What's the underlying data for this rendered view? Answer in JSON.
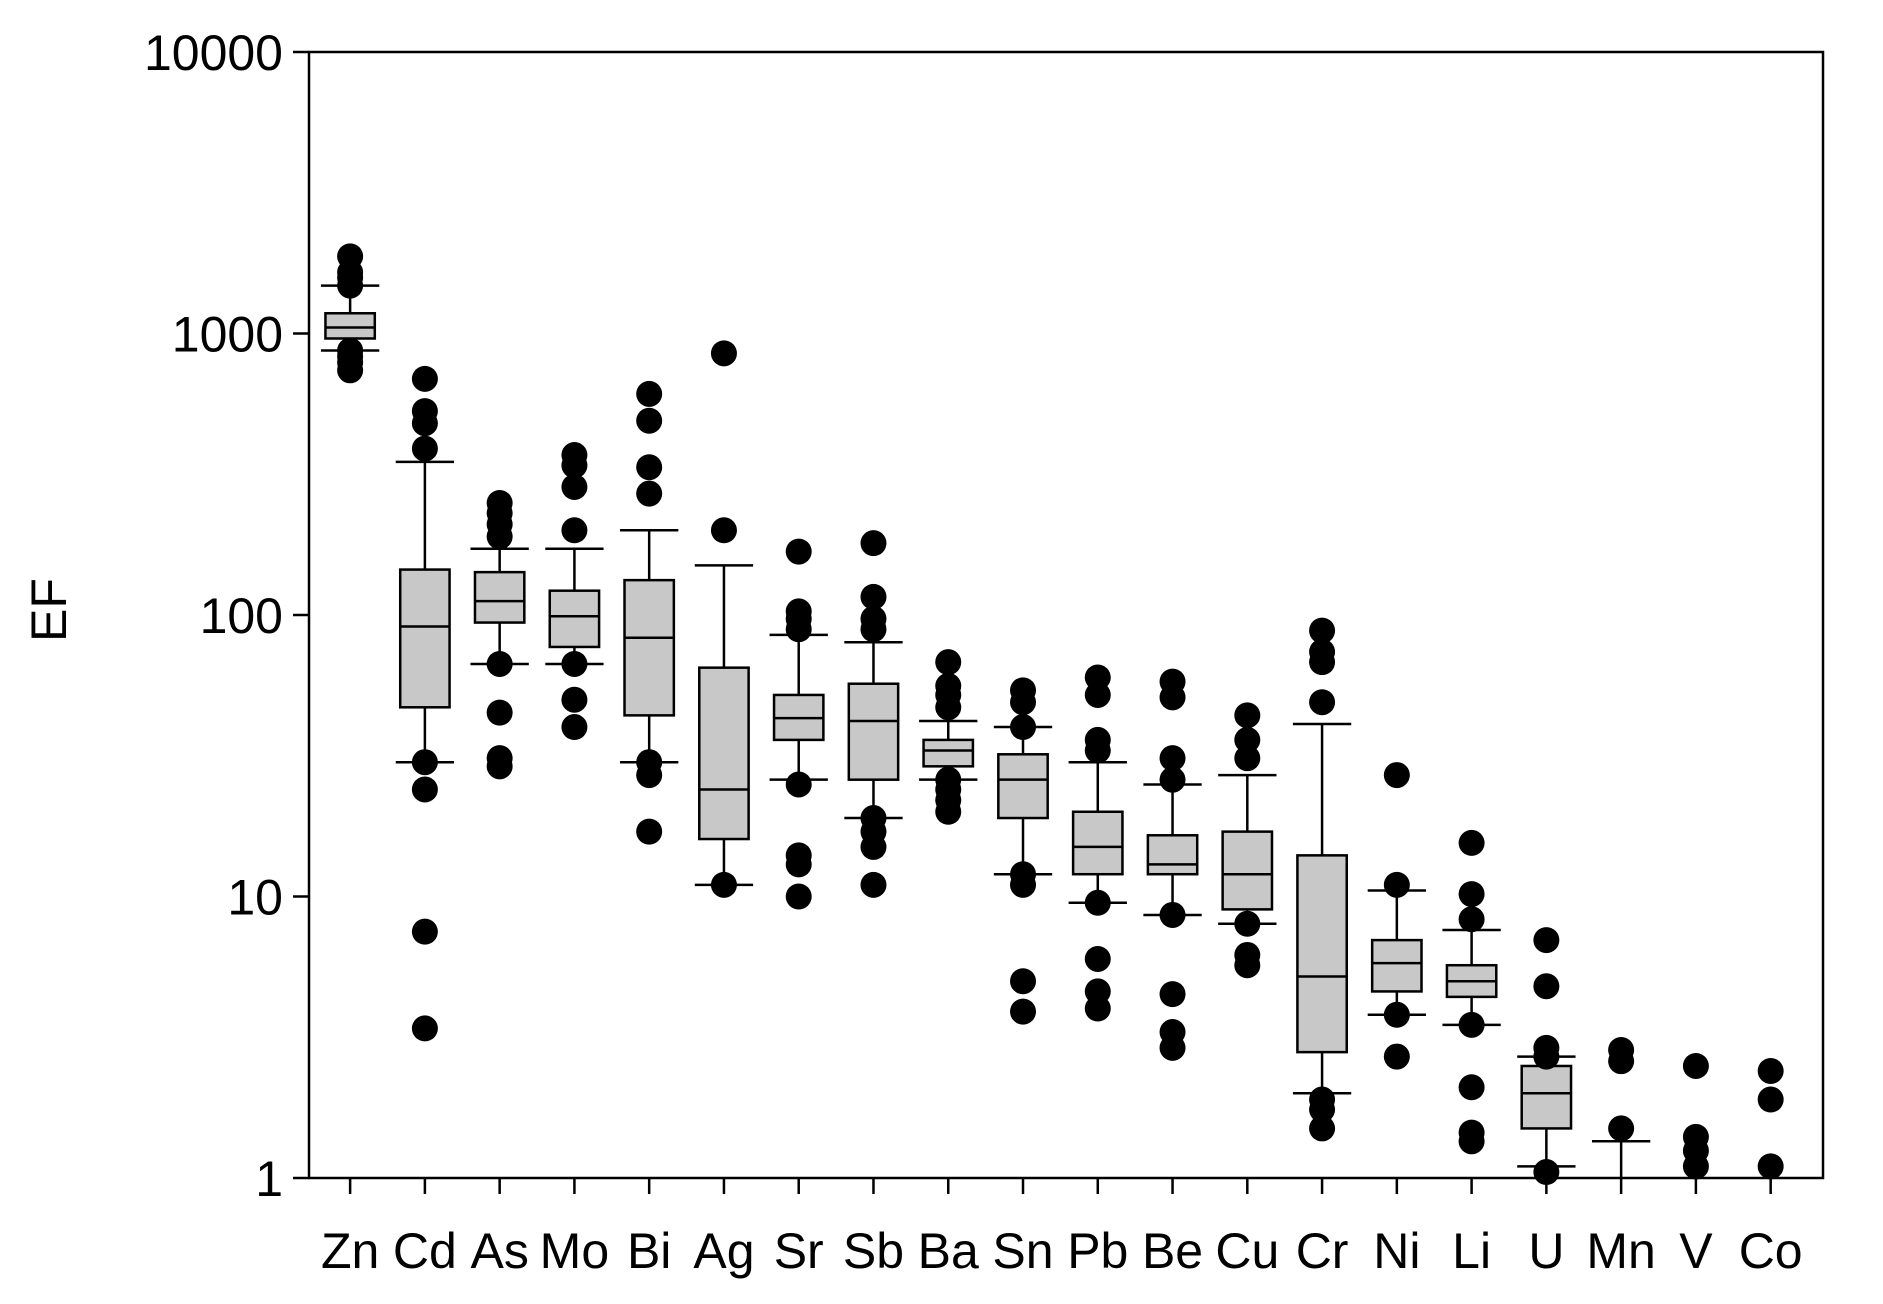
{
  "chart_data": {
    "type": "box",
    "ylabel": "EF",
    "xlabel": "",
    "yscale": "log",
    "ylim": [
      1,
      10000
    ],
    "yticks": [
      "1",
      "10",
      "100",
      "1000",
      "10000"
    ],
    "grid": false,
    "box_fill": "#c8c8c8",
    "categories": [
      "Zn",
      "Cd",
      "As",
      "Mo",
      "Bi",
      "Ag",
      "Sr",
      "Sb",
      "Ba",
      "Sn",
      "Pb",
      "Be",
      "Cu",
      "Cr",
      "Ni",
      "Li",
      "U",
      "Mn",
      "V",
      "Co"
    ],
    "boxes": [
      {
        "name": "Zn",
        "whisker_low": 870,
        "q1": 960,
        "median": 1050,
        "q3": 1180,
        "whisker_high": 1480,
        "outliers": [
          740,
          790,
          830,
          870,
          1480,
          1580,
          1650,
          1880
        ]
      },
      {
        "name": "Cd",
        "whisker_low": 30,
        "q1": 47,
        "median": 91,
        "q3": 145,
        "whisker_high": 350,
        "outliers": [
          690,
          530,
          480,
          390,
          30,
          24,
          7.5,
          3.4
        ]
      },
      {
        "name": "As",
        "whisker_low": 67,
        "q1": 94,
        "median": 112,
        "q3": 142,
        "whisker_high": 172,
        "outliers": [
          250,
          230,
          210,
          190,
          67,
          45,
          31,
          29
        ]
      },
      {
        "name": "Mo",
        "whisker_low": 67,
        "q1": 77,
        "median": 99,
        "q3": 122,
        "whisker_high": 172,
        "outliers": [
          370,
          340,
          285,
          200,
          67,
          50,
          40
        ]
      },
      {
        "name": "Bi",
        "whisker_low": 30,
        "q1": 44,
        "median": 83,
        "q3": 133,
        "whisker_high": 200,
        "outliers": [
          610,
          490,
          335,
          270,
          30,
          27,
          17
        ]
      },
      {
        "name": "Ag",
        "whisker_low": 11,
        "q1": 16,
        "median": 24,
        "q3": 65,
        "whisker_high": 150,
        "outliers": [
          850,
          200,
          11
        ]
      },
      {
        "name": "Sr",
        "whisker_low": 26,
        "q1": 36,
        "median": 43,
        "q3": 52,
        "whisker_high": 85,
        "outliers": [
          168,
          103,
          97,
          89,
          25,
          14,
          13,
          10
        ]
      },
      {
        "name": "Sb",
        "whisker_low": 19,
        "q1": 26,
        "median": 42,
        "q3": 57,
        "whisker_high": 80,
        "outliers": [
          180,
          116,
          97,
          89,
          19,
          17,
          15,
          11
        ]
      },
      {
        "name": "Ba",
        "whisker_low": 26,
        "q1": 29,
        "median": 33,
        "q3": 36,
        "whisker_high": 42,
        "outliers": [
          68,
          56,
          52,
          47,
          26,
          24,
          22,
          20
        ]
      },
      {
        "name": "Sn",
        "whisker_low": 12,
        "q1": 19,
        "median": 26,
        "q3": 32,
        "whisker_high": 40,
        "outliers": [
          54,
          49,
          40,
          12,
          11,
          5,
          3.9
        ]
      },
      {
        "name": "Pb",
        "whisker_low": 9.5,
        "q1": 12,
        "median": 15,
        "q3": 20,
        "whisker_high": 30,
        "outliers": [
          60,
          52,
          36,
          33,
          9.5,
          6,
          4.6,
          4
        ]
      },
      {
        "name": "Be",
        "whisker_low": 8.6,
        "q1": 12,
        "median": 13,
        "q3": 16.5,
        "whisker_high": 25,
        "outliers": [
          58,
          51,
          31,
          26,
          8.6,
          4.5,
          3.3,
          2.9
        ]
      },
      {
        "name": "Cu",
        "whisker_low": 8,
        "q1": 9,
        "median": 12,
        "q3": 17,
        "whisker_high": 27,
        "outliers": [
          44,
          36,
          31,
          8,
          6.2,
          5.7
        ]
      },
      {
        "name": "Cr",
        "whisker_low": 2,
        "q1": 2.8,
        "median": 5.2,
        "q3": 14,
        "whisker_high": 41,
        "outliers": [
          88,
          74,
          68,
          49,
          1.9,
          1.75,
          1.5
        ]
      },
      {
        "name": "Ni",
        "whisker_low": 3.8,
        "q1": 4.6,
        "median": 5.8,
        "q3": 7,
        "whisker_high": 10.5,
        "outliers": [
          27,
          11,
          3.8,
          2.7
        ]
      },
      {
        "name": "Li",
        "whisker_low": 3.5,
        "q1": 4.4,
        "median": 5,
        "q3": 5.7,
        "whisker_high": 7.6,
        "outliers": [
          15.5,
          10.2,
          8.3,
          3.5,
          2.1,
          1.45,
          1.35
        ]
      },
      {
        "name": "U",
        "whisker_low": 1.1,
        "q1": 1.5,
        "median": 2,
        "q3": 2.5,
        "whisker_high": 2.7,
        "outliers": [
          7,
          4.8,
          2.9,
          2.7,
          1.05
        ]
      },
      {
        "name": "Mn",
        "whisker_low": 1,
        "q1": null,
        "median": null,
        "q3": null,
        "whisker_high": 1.35,
        "outliers": [
          2.85,
          2.6,
          1.5
        ]
      },
      {
        "name": "V",
        "whisker_low": null,
        "q1": null,
        "median": null,
        "q3": null,
        "whisker_high": null,
        "outliers": [
          2.5,
          1.4,
          1.25,
          1.1
        ]
      },
      {
        "name": "Co",
        "whisker_low": null,
        "q1": null,
        "median": null,
        "q3": null,
        "whisker_high": null,
        "outliers": [
          2.4,
          1.9,
          1.1
        ]
      }
    ]
  }
}
